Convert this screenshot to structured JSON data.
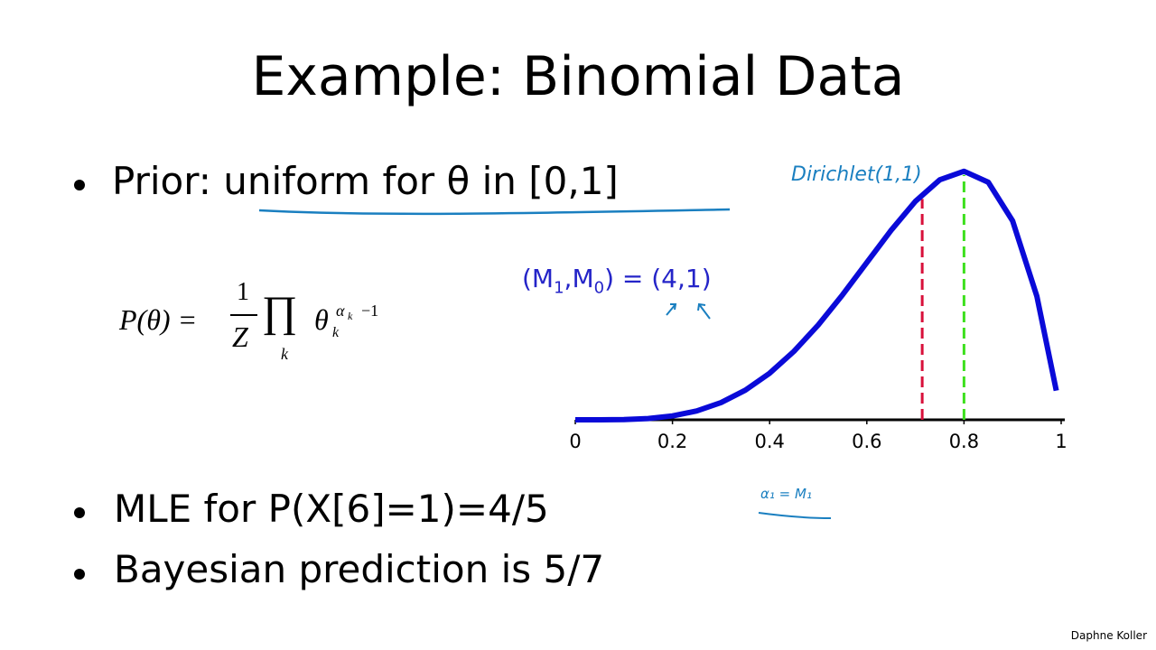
{
  "title": "Example: Binomial Data",
  "bullets": [
    {
      "lead": "Prior:",
      "underlined": "uniform for θ in [0,1]"
    },
    {
      "text": "MLE for P(X[6]=1)=4/5"
    },
    {
      "text": "Bayesian prediction is 5/7"
    }
  ],
  "formula": {
    "lhs": "P(θ) =",
    "numerator": "1",
    "denominator": "Z",
    "product": "∏",
    "product_index": "k",
    "base": "θ",
    "base_sub": "k",
    "exp": "α",
    "exp_sub": "k",
    "exp_tail": "−1"
  },
  "counts": {
    "open": "(M",
    "sub1": "1",
    "mid": ",M",
    "sub0": "0",
    "close": ") = (4,1)"
  },
  "handwriting": [
    "Dirichlet(1,1)",
    "α₁ = M₁"
  ],
  "footer": "Daphne Koller",
  "chart_data": {
    "type": "line",
    "x": [
      0,
      0.05,
      0.1,
      0.15,
      0.2,
      0.25,
      0.3,
      0.35,
      0.4,
      0.45,
      0.5,
      0.55,
      0.6,
      0.65,
      0.7,
      0.75,
      0.8,
      0.85,
      0.9,
      0.95,
      0.99
    ],
    "series": [
      {
        "color": "#0a0ad8",
        "values": [
          0,
          0.0002,
          0.0027,
          0.0129,
          0.0384,
          0.0879,
          0.1701,
          0.2926,
          0.4608,
          0.6766,
          0.9375,
          1.2353,
          1.5552,
          1.8743,
          2.1609,
          2.373,
          2.4576,
          2.349,
          1.9683,
          1.2218,
          0.2882
        ]
      }
    ],
    "xlim": [
      0,
      1
    ],
    "ylim": [
      0,
      2.5
    ],
    "xticks": [
      0,
      0.2,
      0.4,
      0.6,
      0.8,
      1
    ],
    "vlines": [
      {
        "value": 0.714,
        "color": "#d8103a"
      },
      {
        "value": 0.8,
        "color": "#3ee01e"
      }
    ]
  }
}
